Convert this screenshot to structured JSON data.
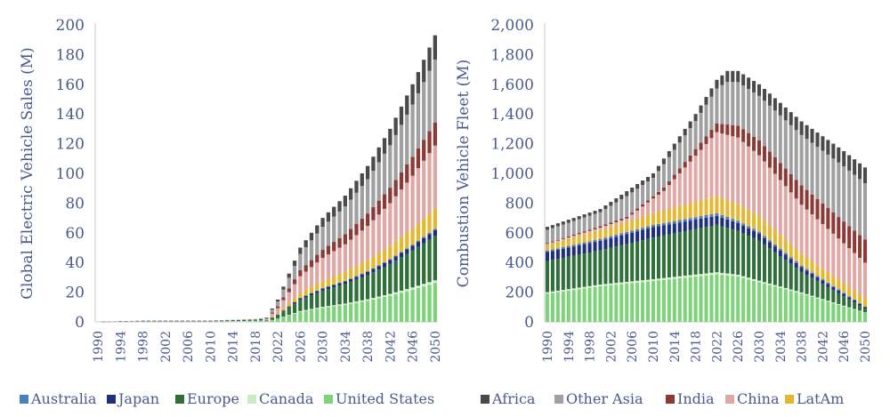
{
  "chart_data": [
    {
      "type": "bar",
      "stacked": true,
      "ylabel": "Global Electric Vehicle Sales (M)",
      "ylim": [
        0,
        200
      ],
      "yticks": [
        0,
        20,
        40,
        60,
        80,
        100,
        120,
        140,
        160,
        180,
        200
      ],
      "x_start": 1990,
      "x_end": 2050,
      "x_tick_labels": [
        "1990",
        "1994",
        "1998",
        "2002",
        "2006",
        "2010",
        "2014",
        "2018",
        "2022",
        "2026",
        "2030",
        "2034",
        "2038",
        "2042",
        "2046",
        "2050"
      ],
      "series": [
        {
          "name": "United States",
          "color": "#7ed27a"
        },
        {
          "name": "Canada",
          "color": "#c9ecc2"
        },
        {
          "name": "Europe",
          "color": "#2f6f3a"
        },
        {
          "name": "Japan",
          "color": "#1f2f7a"
        },
        {
          "name": "Australia",
          "color": "#4f7fb8"
        },
        {
          "name": "",
          "color": "#e4b832"
        },
        {
          "name": "",
          "color": "#e0a8a4"
        },
        {
          "name": "",
          "color": "#8b3a36"
        },
        {
          "name": "",
          "color": "#a0a0a0"
        },
        {
          "name": "",
          "color": "#4a4a4a"
        }
      ],
      "totals": {
        "1990": 0,
        "1998": 1,
        "2002": 1,
        "2010": 1,
        "2018": 2,
        "2020": 3,
        "2022": 15,
        "2026": 50,
        "2030": 70,
        "2034": 85,
        "2038": 105,
        "2042": 130,
        "2046": 160,
        "2050": 193
      },
      "legend": [
        "Australia",
        "Japan",
        "Europe",
        "Canada",
        "United States"
      ]
    },
    {
      "type": "bar",
      "stacked": true,
      "ylabel": "Combustion Vehicle Fleet (M)",
      "ylim": [
        0,
        2000
      ],
      "yticks": [
        "0",
        "200",
        "400",
        "600",
        "800",
        "1,000",
        "1,200",
        "1,400",
        "1,600",
        "1,800",
        "2,000"
      ],
      "x_start": 1990,
      "x_end": 2050,
      "x_tick_labels": [
        "1990",
        "1994",
        "1998",
        "2002",
        "2006",
        "2010",
        "2014",
        "2018",
        "2022",
        "2026",
        "2030",
        "2034",
        "2038",
        "2042",
        "2046",
        "2050"
      ],
      "series": [
        {
          "name": "United States",
          "color": "#7ed27a"
        },
        {
          "name": "Canada",
          "color": "#c9ecc2"
        },
        {
          "name": "Europe",
          "color": "#2f6f3a"
        },
        {
          "name": "Japan",
          "color": "#1f2f7a"
        },
        {
          "name": "Australia",
          "color": "#4f7fb8"
        },
        {
          "name": "LatAm",
          "color": "#e4b832"
        },
        {
          "name": "China",
          "color": "#e0a8a4"
        },
        {
          "name": "India",
          "color": "#8b3a36"
        },
        {
          "name": "Other Asia",
          "color": "#a0a0a0"
        },
        {
          "name": "Africa",
          "color": "#4a4a4a"
        }
      ],
      "totals": {
        "1990": 640,
        "2000": 760,
        "2010": 1000,
        "2018": 1400,
        "2022": 1630,
        "2024": 1690,
        "2026": 1690,
        "2030": 1600,
        "2038": 1350,
        "2046": 1150,
        "2050": 1040
      },
      "legend": [
        "Africa",
        "Other Asia",
        "India",
        "China",
        "LatAm"
      ]
    }
  ]
}
